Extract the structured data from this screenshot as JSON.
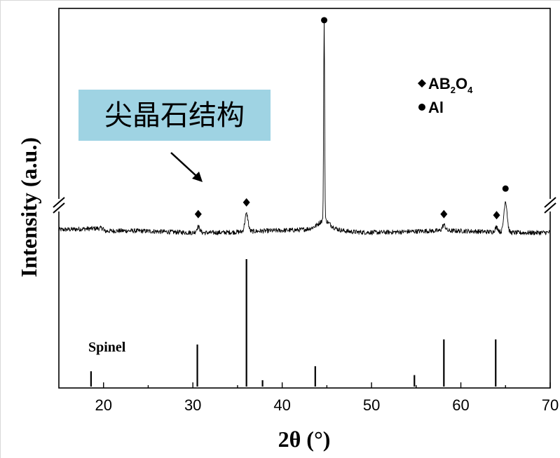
{
  "chart_data": {
    "type": "line",
    "xlabel": "2θ (°)",
    "ylabel": "Intensity (a.u.)",
    "xlim": [
      15,
      70
    ],
    "x_ticks": [
      "20",
      "30",
      "40",
      "50",
      "60",
      "70"
    ],
    "legend": {
      "placement": "top-right",
      "entries": [
        {
          "marker": "diamond",
          "prefix": "AB",
          "sub1": "2",
          "mid": "O",
          "sub2": "4"
        },
        {
          "marker": "circle",
          "label": "Al"
        }
      ]
    },
    "annotation": {
      "text": "尖晶石结构",
      "background": "#9fd3e3"
    },
    "pattern": {
      "baseline_au": 0.5,
      "noise_au": 0.12,
      "peaks": [
        {
          "x": 30.6,
          "height_au": 0.3,
          "marker": "diamond"
        },
        {
          "x": 36.0,
          "height_au": 0.9,
          "marker": "diamond"
        },
        {
          "x": 44.7,
          "height_au": 10.0,
          "marker": "circle"
        },
        {
          "x": 58.1,
          "height_au": 0.3,
          "marker": "diamond"
        },
        {
          "x": 64.0,
          "height_au": 0.25,
          "marker": "diamond"
        },
        {
          "x": 65.0,
          "height_au": 1.6,
          "marker": "circle"
        }
      ]
    },
    "reference": {
      "label": "Spinel",
      "lines": [
        {
          "x": 18.6,
          "rel": 0.12
        },
        {
          "x": 30.5,
          "rel": 0.33
        },
        {
          "x": 36.0,
          "rel": 1.0
        },
        {
          "x": 37.8,
          "rel": 0.05
        },
        {
          "x": 43.7,
          "rel": 0.16
        },
        {
          "x": 54.8,
          "rel": 0.09
        },
        {
          "x": 58.1,
          "rel": 0.37
        },
        {
          "x": 63.9,
          "rel": 0.37
        }
      ]
    },
    "axis_break": true,
    "grid": false,
    "colors": {
      "line": "#000000",
      "annotation_bg": "#9fd3e3"
    }
  }
}
